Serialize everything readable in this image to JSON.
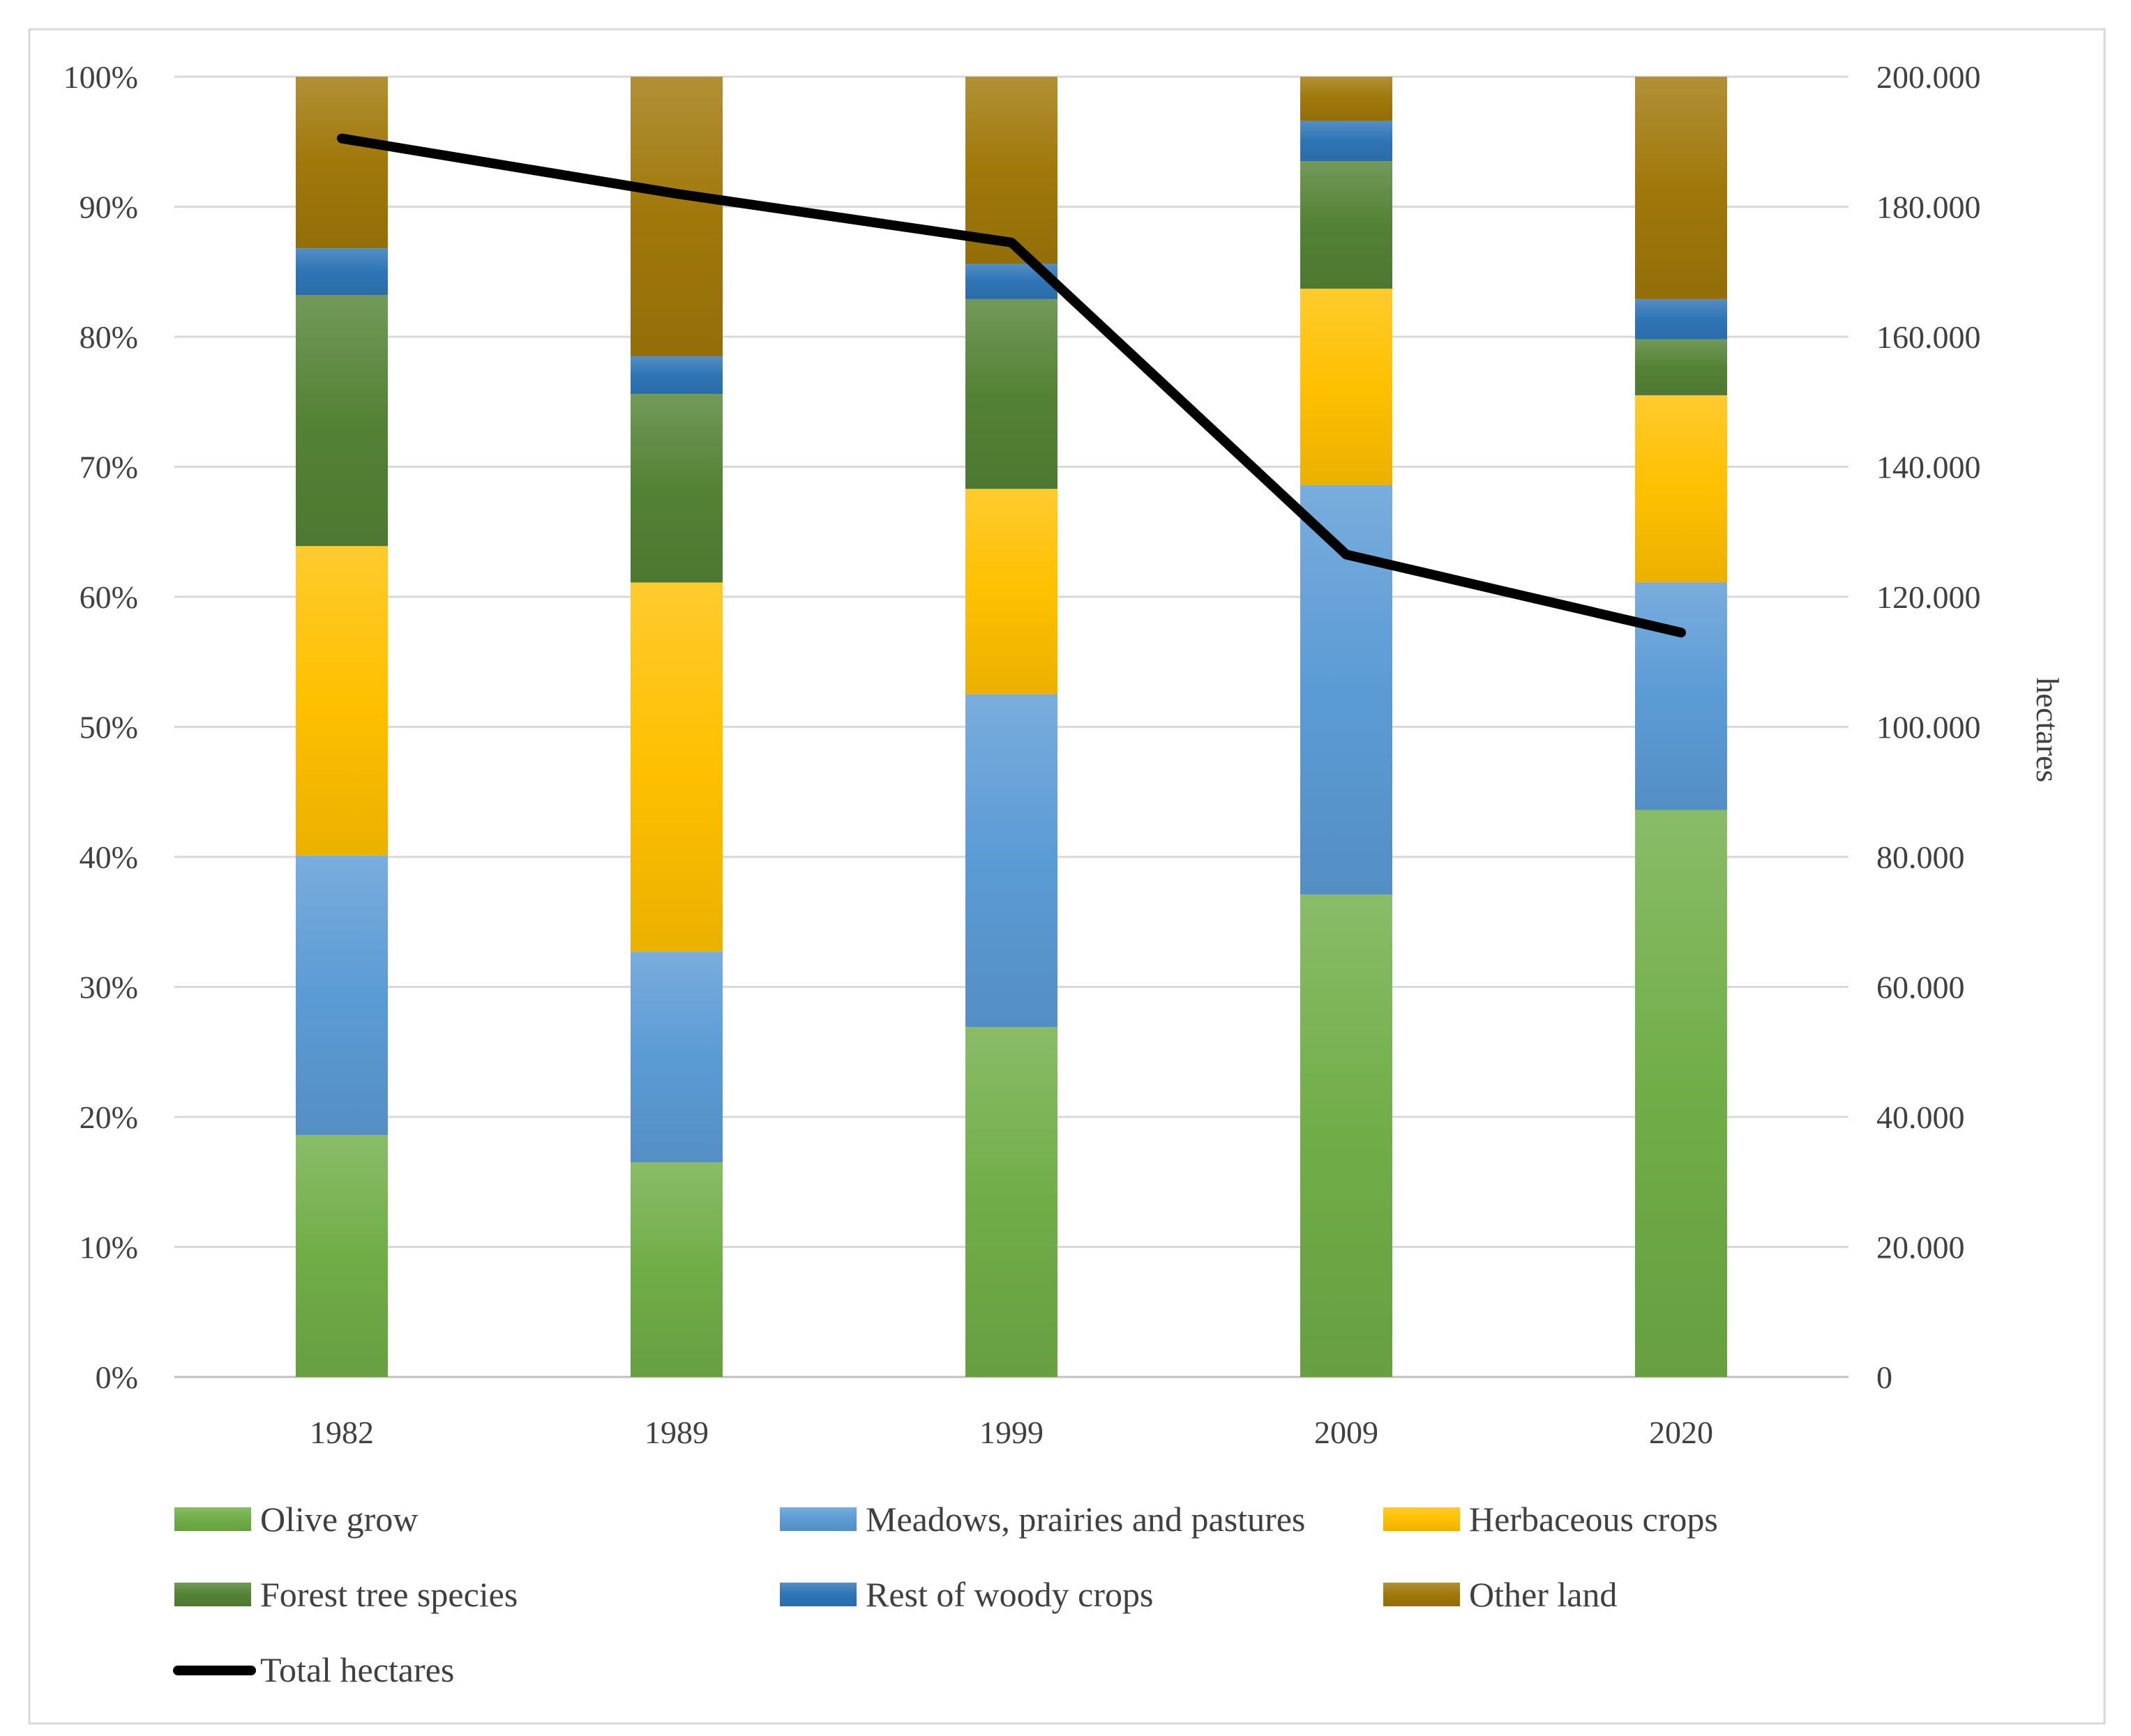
{
  "chart_data": {
    "type": "bar",
    "stacked": true,
    "percent_stacked": true,
    "categories": [
      "1982",
      "1989",
      "1999",
      "2009",
      "2020"
    ],
    "series": [
      {
        "name": "Olive grow",
        "values": [
          18.6,
          16.5,
          26.9,
          37.1,
          43.6
        ],
        "color": "#70ad47"
      },
      {
        "name": "Meadows, prairies and pastures",
        "values": [
          21.5,
          16.2,
          25.6,
          31.5,
          17.5
        ],
        "color": "#5b9bd5"
      },
      {
        "name": "Herbaceous crops",
        "values": [
          23.8,
          28.4,
          15.8,
          15.1,
          14.4
        ],
        "color": "#ffc000"
      },
      {
        "name": "Forest tree species",
        "values": [
          19.3,
          14.5,
          14.6,
          9.8,
          4.3
        ],
        "color": "#548235"
      },
      {
        "name": "Rest of woody crops",
        "values": [
          3.6,
          2.9,
          2.7,
          3.1,
          3.1
        ],
        "color": "#2e75b6"
      },
      {
        "name": "Other land",
        "values": [
          13.2,
          21.5,
          14.4,
          3.4,
          17.1
        ],
        "color": "#a0780a"
      }
    ],
    "line_series": {
      "name": "Total hectares",
      "axis": "right",
      "values": [
        190500,
        182000,
        174500,
        126500,
        114500
      ],
      "color": "#000000"
    },
    "left_axis": {
      "ticks": [
        "0%",
        "10%",
        "20%",
        "30%",
        "40%",
        "50%",
        "60%",
        "70%",
        "80%",
        "90%",
        "100%"
      ],
      "range": [
        0,
        100
      ]
    },
    "right_axis": {
      "label": "hectares",
      "ticks": [
        "0",
        "20.000",
        "40.000",
        "60.000",
        "80.000",
        "100.000",
        "120.000",
        "140.000",
        "160.000",
        "180.000",
        "200.000"
      ],
      "range": [
        0,
        200000
      ]
    },
    "grid": true,
    "legend_position": "bottom"
  }
}
